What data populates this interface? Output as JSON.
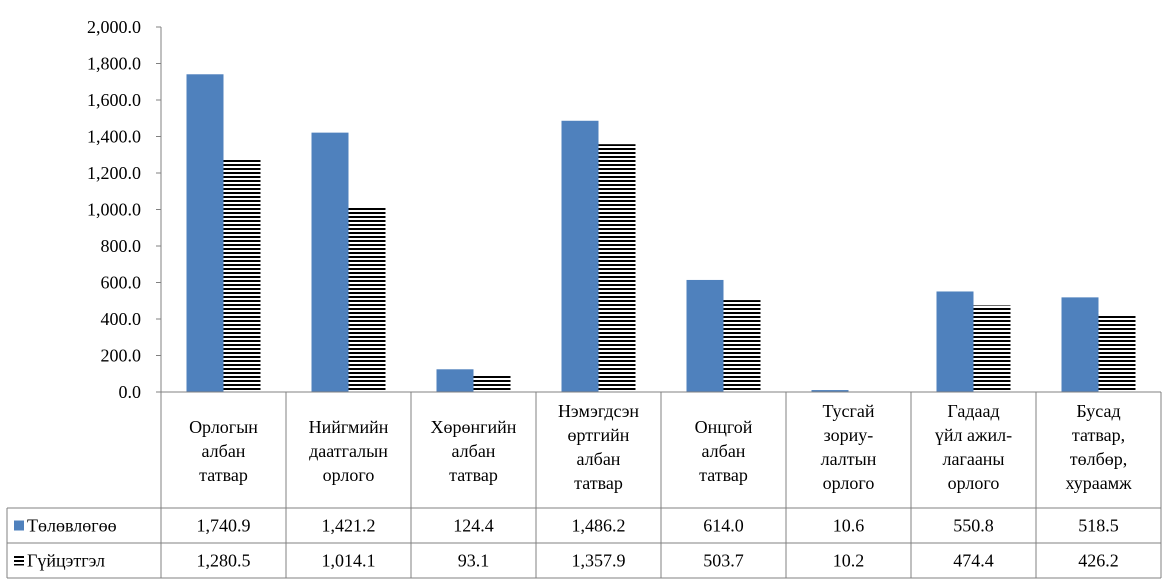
{
  "colors": {
    "planned": "#4f81bd",
    "actual_stripe": "#000000",
    "actual_bg": "#ffffff",
    "axis": "#808080"
  },
  "icons": {
    "planned": "blue-square-swatch",
    "actual": "horizontal-stripe-swatch"
  },
  "chart_data": {
    "type": "bar",
    "categories": [
      [
        "Орлогын",
        "албан",
        "татвар"
      ],
      [
        "Нийгмийн",
        "даатгалын",
        "орлого"
      ],
      [
        "Хөрөнгийн",
        "албан",
        "татвар"
      ],
      [
        "Нэмэгдсэн",
        "өртгийн",
        "албан",
        "татвар"
      ],
      [
        "Онцгой",
        "албан",
        "татвар"
      ],
      [
        "Тусгай",
        "зориу-",
        "лалтын",
        "орлого"
      ],
      [
        "Гадаад",
        "үйл ажил-",
        "лагааны",
        "орлого"
      ],
      [
        "Бусад",
        "татвар,",
        "төлбөр,",
        "хураамж"
      ]
    ],
    "series": [
      {
        "name": "Төлөвлөгөө",
        "values": [
          1740.9,
          1421.2,
          124.4,
          1486.2,
          614.0,
          10.6,
          550.8,
          518.5
        ],
        "labels": [
          "1,740.9",
          "1,421.2",
          "124.4",
          "1,486.2",
          "614.0",
          "10.6",
          "550.8",
          "518.5"
        ]
      },
      {
        "name": "Гүйцэтгэл",
        "values": [
          1280.5,
          1014.1,
          93.1,
          1357.9,
          503.7,
          10.2,
          474.4,
          426.2
        ],
        "labels": [
          "1,280.5",
          "1,014.1",
          "93.1",
          "1,357.9",
          "503.7",
          "10.2",
          "474.4",
          "426.2"
        ]
      }
    ],
    "ylim": [
      0,
      2000
    ],
    "yticks": [
      0,
      200,
      400,
      600,
      800,
      1000,
      1200,
      1400,
      1600,
      1800,
      2000
    ],
    "ytick_labels": [
      "0.0",
      "200.0",
      "400.0",
      "600.0",
      "800.0",
      "1,000.0",
      "1,200.0",
      "1,400.0",
      "1,600.0",
      "1,800.0",
      "2,000.0"
    ],
    "grid": false,
    "legend": "data-table",
    "data_table": true
  }
}
